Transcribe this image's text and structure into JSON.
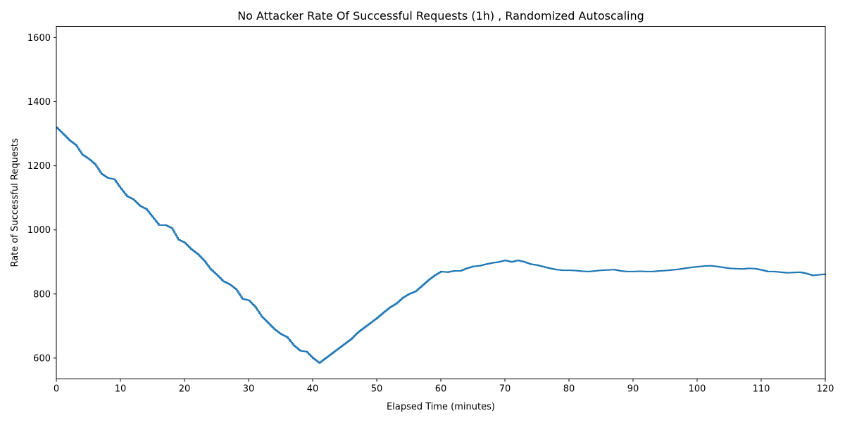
{
  "chart_data": {
    "type": "line",
    "title": "No Attacker Rate Of Successful Requests (1h) , Randomized Autoscaling",
    "xlabel": "Elapsed Time (minutes)",
    "ylabel": "Rate of Successful Requests",
    "xlim": [
      0,
      120
    ],
    "ylim": [
      535,
      1635
    ],
    "xticks": [
      0,
      10,
      20,
      30,
      40,
      50,
      60,
      70,
      80,
      90,
      100,
      110,
      120
    ],
    "yticks": [
      600,
      800,
      1000,
      1200,
      1400,
      1600
    ],
    "grid": false,
    "series": [
      {
        "color": "#1f77b4",
        "x": [
          0,
          1,
          2,
          3,
          4,
          5,
          6,
          7,
          8,
          9,
          10,
          11,
          12,
          13,
          14,
          15,
          16,
          17,
          18,
          19,
          20,
          21,
          22,
          23,
          24,
          25,
          26,
          27,
          28,
          29,
          30,
          31,
          32,
          33,
          34,
          35,
          36,
          37,
          38,
          39,
          40,
          41,
          42,
          43,
          44,
          45,
          46,
          47,
          48,
          49,
          50,
          51,
          52,
          53,
          54,
          55,
          56,
          57,
          58,
          59,
          60,
          61,
          62,
          63,
          64,
          65,
          66,
          67,
          68,
          69,
          70,
          71,
          72,
          73,
          74,
          75,
          76,
          77,
          78,
          79,
          80,
          81,
          82,
          83,
          84,
          85,
          86,
          87,
          88,
          89,
          90,
          91,
          92,
          93,
          94,
          95,
          96,
          97,
          98,
          99,
          100,
          101,
          102,
          103,
          104,
          105,
          106,
          107,
          108,
          109,
          110,
          111,
          112,
          113,
          114,
          115,
          116,
          117,
          118,
          119,
          120
        ],
        "y": [
          1320,
          1300,
          1280,
          1265,
          1235,
          1222,
          1205,
          1175,
          1162,
          1158,
          1130,
          1105,
          1095,
          1075,
          1065,
          1040,
          1015,
          1015,
          1005,
          970,
          960,
          940,
          925,
          905,
          878,
          860,
          840,
          830,
          815,
          785,
          780,
          760,
          730,
          710,
          690,
          675,
          665,
          640,
          623,
          620,
          600,
          585,
          600,
          615,
          630,
          645,
          660,
          680,
          695,
          710,
          725,
          742,
          758,
          770,
          788,
          800,
          808,
          825,
          843,
          858,
          870,
          868,
          872,
          872,
          880,
          886,
          888,
          893,
          897,
          900,
          905,
          900,
          905,
          900,
          893,
          890,
          885,
          880,
          876,
          874,
          874,
          873,
          871,
          870,
          872,
          874,
          875,
          876,
          872,
          870,
          870,
          871,
          870,
          870,
          872,
          873,
          875,
          877,
          880,
          883,
          885,
          887,
          888,
          886,
          883,
          880,
          879,
          878,
          880,
          879,
          875,
          870,
          870,
          868,
          866,
          867,
          868,
          864,
          858,
          860,
          862
        ]
      }
    ]
  }
}
